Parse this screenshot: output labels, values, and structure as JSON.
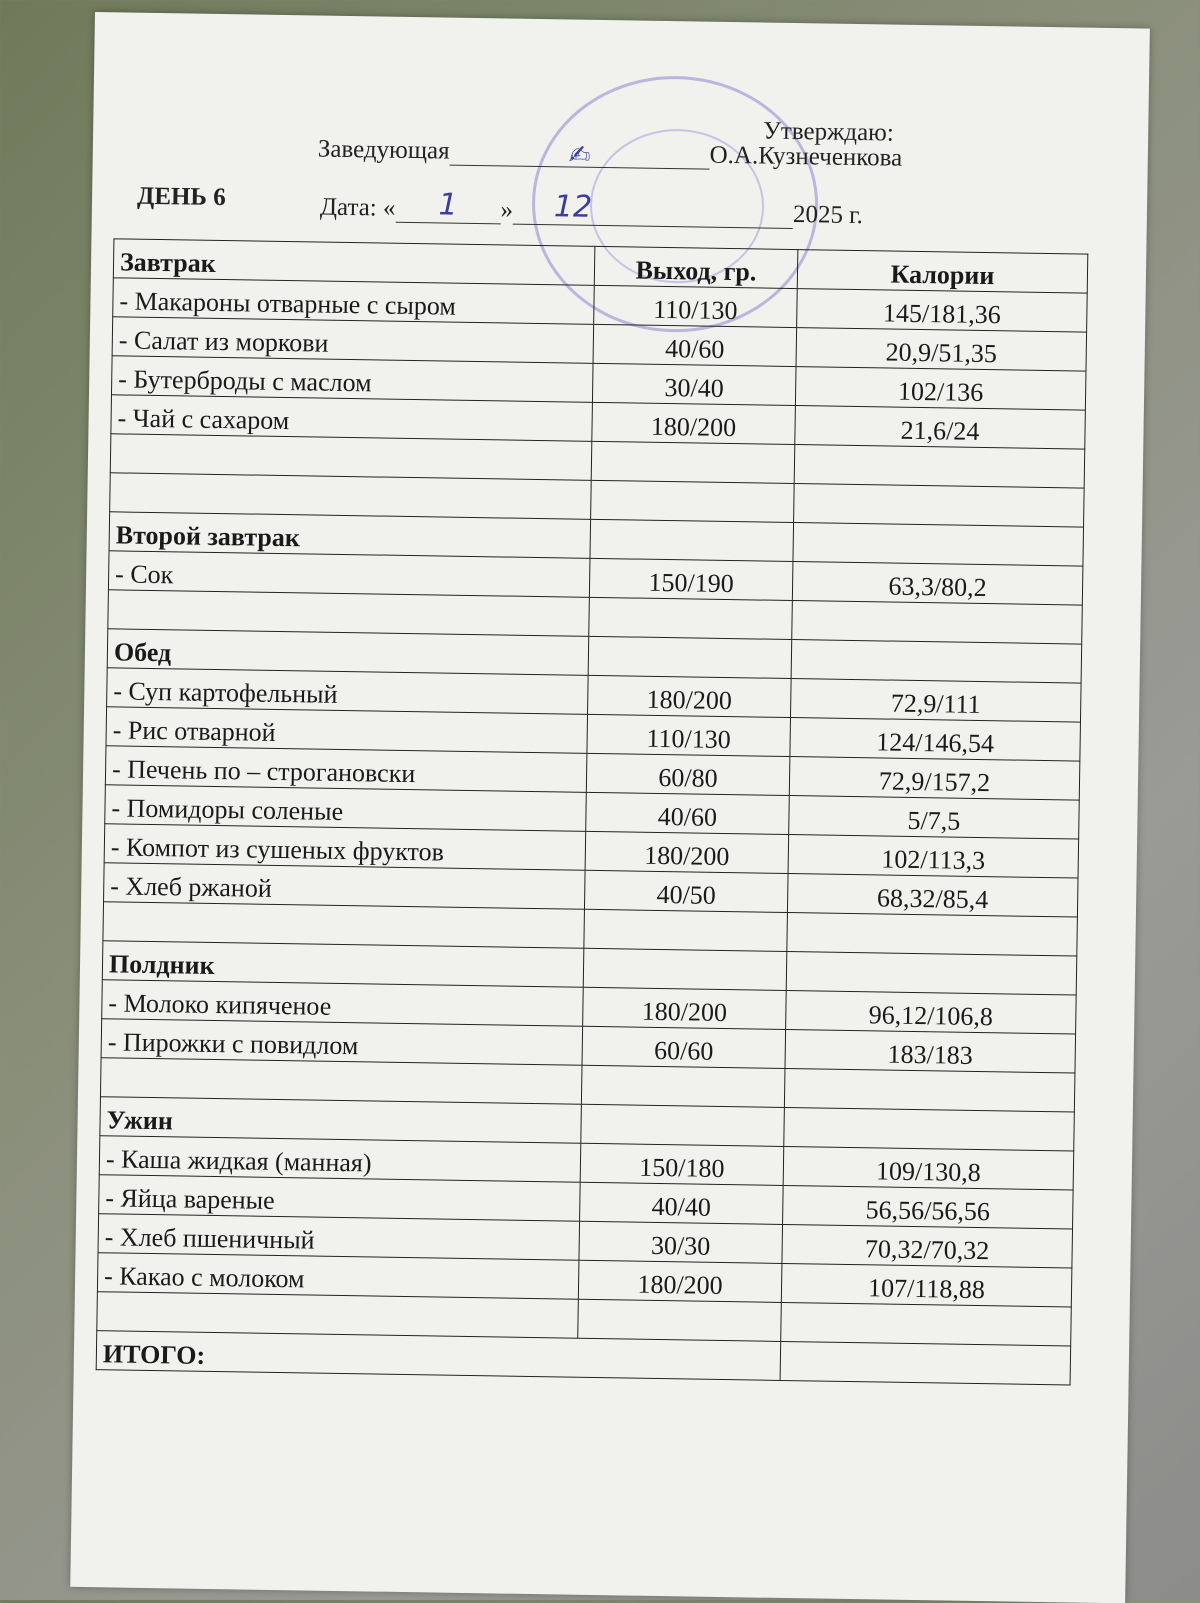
{
  "header": {
    "manager_label": "Заведующая",
    "approve_label": "Утверждаю:",
    "approver_name": "О.А.Кузнеченкова",
    "day_label": "ДЕНЬ  6",
    "date_label": "Дата: «",
    "date_day": "1",
    "date_close": "»",
    "date_month": "12",
    "date_year": "2025 г."
  },
  "table": {
    "columns": [
      "Завтрак",
      "Выход, гр.",
      "Калории"
    ],
    "rows": [
      {
        "name": "- Макароны отварные с сыром",
        "yield": "110/130",
        "cal": "145/181,36"
      },
      {
        "name": "- Салат из моркови",
        "yield": "40/60",
        "cal": "20,9/51,35"
      },
      {
        "name": "- Бутерброды с маслом",
        "yield": "30/40",
        "cal": "102/136"
      },
      {
        "name": "- Чай с  сахаром",
        "yield": "180/200",
        "cal": "21,6/24"
      },
      {
        "name": "",
        "yield": "",
        "cal": ""
      },
      {
        "name": "",
        "yield": "",
        "cal": ""
      },
      {
        "name": "Второй  завтрак",
        "section": true,
        "yield": "",
        "cal": ""
      },
      {
        "name": "- Сок",
        "yield": "150/190",
        "cal": "63,3/80,2"
      },
      {
        "name": "",
        "yield": "",
        "cal": ""
      },
      {
        "name": "Обед",
        "section": true,
        "yield": "",
        "cal": ""
      },
      {
        "name": "- Суп картофельный",
        "yield": "180/200",
        "cal": "72,9/111"
      },
      {
        "name": "- Рис отварной",
        "yield": "110/130",
        "cal": "124/146,54"
      },
      {
        "name": "- Печень по – строгановски",
        "yield": "60/80",
        "cal": "72,9/157,2"
      },
      {
        "name": "- Помидоры соленые",
        "yield": "40/60",
        "cal": "5/7,5"
      },
      {
        "name": "- Компот  из сушеных фруктов",
        "yield": "180/200",
        "cal": "102/113,3"
      },
      {
        "name": "- Хлеб ржаной",
        "yield": "40/50",
        "cal": "68,32/85,4"
      },
      {
        "name": "",
        "yield": "",
        "cal": ""
      },
      {
        "name": "Полдник",
        "section": true,
        "yield": "",
        "cal": ""
      },
      {
        "name": "- Молоко кипяченое",
        "yield": "180/200",
        "cal": "96,12/106,8"
      },
      {
        "name": "- Пирожки с повидлом",
        "yield": "60/60",
        "cal": "183/183"
      },
      {
        "name": "",
        "yield": "",
        "cal": ""
      },
      {
        "name": "Ужин",
        "section": true,
        "yield": "",
        "cal": ""
      },
      {
        "name": "- Каша жидкая (манная)",
        "yield": "150/180",
        "cal": "109/130,8"
      },
      {
        "name": "- Яйца вареные",
        "yield": "40/40",
        "cal": "56,56/56,56"
      },
      {
        "name": "- Хлеб пшеничный",
        "yield": "30/30",
        "cal": "70,32/70,32"
      },
      {
        "name": "- Какао с молоком",
        "yield": "180/200",
        "cal": "107/118,88"
      },
      {
        "name": "",
        "yield": "",
        "cal": ""
      }
    ],
    "total_label": "ИТОГО:"
  }
}
